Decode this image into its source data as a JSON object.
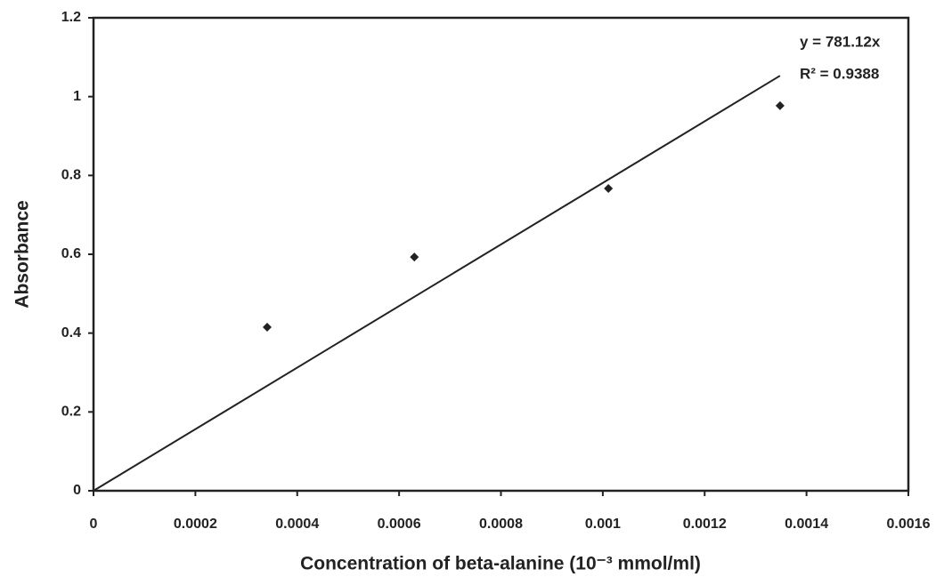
{
  "chart_data": {
    "type": "scatter",
    "x_label": "Concentration of beta-alanine (10⁻³ mmol/ml)",
    "y_label": "Absorbance",
    "series": [
      {
        "name": "Absorbance",
        "color": "#222222",
        "x": [
          0.000341,
          0.00063,
          0.001011,
          0.001348
        ],
        "values": [
          0.415,
          0.593,
          0.767,
          0.977
        ]
      }
    ],
    "trendline": {
      "slope": 781.12,
      "equation": "y = 781.12x",
      "r_squared": "R² = 0.9388",
      "color": "#222222"
    },
    "xlim": [
      0,
      0.0016
    ],
    "xticks": [
      0,
      0.0002,
      0.0004,
      0.0006,
      0.0008,
      0.001,
      0.0012,
      0.0014,
      0.0016
    ],
    "ylim": [
      0,
      1.2
    ],
    "yticks": [
      0,
      0.2,
      0.4,
      0.6,
      0.8,
      1,
      1.2
    ],
    "grid": false
  }
}
